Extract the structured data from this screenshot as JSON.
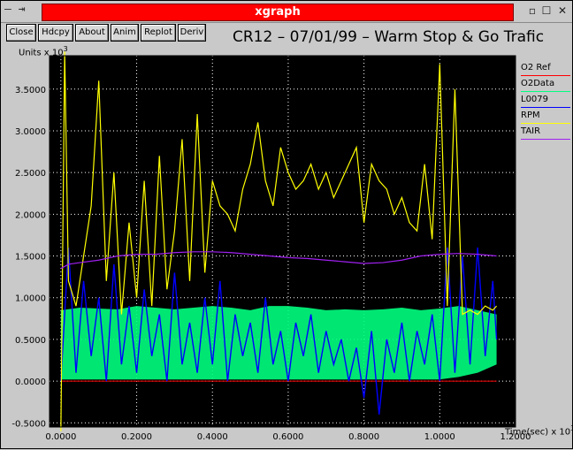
{
  "window": {
    "title": "xgraph",
    "left_controls": "— ⇥",
    "right_controls": [
      "▫",
      "☐",
      "✕"
    ]
  },
  "toolbar": {
    "buttons": [
      "Close",
      "Hdcpy",
      "About",
      "Anim",
      "Replot",
      "Deriv"
    ]
  },
  "chart_data": {
    "type": "line",
    "title": "CR12 – 07/01/99 – Warm Stop & Go Trafic",
    "ylabel": "Units x 10",
    "ylabel_exp": "3",
    "xlabel": "Time(sec) x 10",
    "xlabel_exp": "3",
    "xlim": [
      -0.03,
      1.2
    ],
    "ylim": [
      -0.55,
      3.9
    ],
    "x_ticks": [
      "0.0000",
      "0.2000",
      "0.4000",
      "0.6000",
      "0.8000",
      "1.0000",
      "1.2000"
    ],
    "x_tick_values": [
      0,
      0.2,
      0.4,
      0.6,
      0.8,
      1.0,
      1.2
    ],
    "y_ticks": [
      "-0.5000",
      "0.0000",
      "0.5000",
      "1.0000",
      "1.5000",
      "2.0000",
      "2.5000",
      "3.0000",
      "3.5000"
    ],
    "y_tick_values": [
      -0.5,
      0,
      0.5,
      1.0,
      1.5,
      2.0,
      2.5,
      3.0,
      3.5
    ],
    "grid": true,
    "legend_position": "right",
    "series": [
      {
        "name": "O2 Ref",
        "color": "#ff0000",
        "x": [
          0.0,
          1.15
        ],
        "y": [
          0.0,
          0.0
        ]
      },
      {
        "name": "O2Data",
        "color": "#00ff80",
        "x": [
          0.0,
          0.05,
          0.1,
          0.15,
          0.2,
          0.25,
          0.3,
          0.35,
          0.4,
          0.45,
          0.5,
          0.55,
          0.6,
          0.65,
          0.7,
          0.75,
          0.8,
          0.85,
          0.9,
          0.95,
          1.0,
          1.05,
          1.1,
          1.15
        ],
        "y_low": [
          0.02,
          0.02,
          0.02,
          0.02,
          0.02,
          0.02,
          0.02,
          0.02,
          0.02,
          0.02,
          0.02,
          0.02,
          0.02,
          0.02,
          0.02,
          0.02,
          0.02,
          0.02,
          0.02,
          0.02,
          0.02,
          0.05,
          0.1,
          0.2
        ],
        "y_high": [
          0.85,
          0.88,
          0.87,
          0.86,
          0.9,
          0.88,
          0.86,
          0.88,
          0.9,
          0.88,
          0.85,
          0.9,
          0.9,
          0.88,
          0.85,
          0.86,
          0.85,
          0.86,
          0.88,
          0.85,
          0.87,
          0.9,
          0.85,
          0.8
        ]
      },
      {
        "name": "L0079",
        "color": "#0000ff",
        "x": [
          0.0,
          0.02,
          0.04,
          0.06,
          0.08,
          0.1,
          0.12,
          0.14,
          0.16,
          0.18,
          0.2,
          0.22,
          0.24,
          0.26,
          0.28,
          0.3,
          0.32,
          0.34,
          0.36,
          0.38,
          0.4,
          0.42,
          0.44,
          0.46,
          0.48,
          0.5,
          0.52,
          0.54,
          0.56,
          0.58,
          0.6,
          0.62,
          0.64,
          0.66,
          0.68,
          0.7,
          0.72,
          0.74,
          0.76,
          0.78,
          0.8,
          0.82,
          0.84,
          0.86,
          0.88,
          0.9,
          0.92,
          0.94,
          0.96,
          0.98,
          1.0,
          1.02,
          1.04,
          1.06,
          1.08,
          1.1,
          1.12,
          1.14,
          1.15
        ],
        "y": [
          0.0,
          1.6,
          0.1,
          1.2,
          0.3,
          1.0,
          0.0,
          1.4,
          0.2,
          0.9,
          0.1,
          1.1,
          0.3,
          0.8,
          0.0,
          1.3,
          0.2,
          0.7,
          0.1,
          1.0,
          0.2,
          1.2,
          0.0,
          0.8,
          0.3,
          0.7,
          0.1,
          1.0,
          0.2,
          0.6,
          0.0,
          0.7,
          0.3,
          0.8,
          0.1,
          0.6,
          0.2,
          0.5,
          0.0,
          0.4,
          -0.2,
          0.6,
          -0.4,
          0.5,
          0.1,
          0.7,
          0.0,
          0.6,
          0.2,
          0.8,
          0.0,
          1.6,
          0.1,
          1.5,
          0.2,
          1.6,
          0.3,
          1.2,
          0.5
        ]
      },
      {
        "name": "RPM",
        "color": "#ffff00",
        "x": [
          0.0,
          0.01,
          0.02,
          0.04,
          0.06,
          0.08,
          0.1,
          0.12,
          0.14,
          0.16,
          0.18,
          0.2,
          0.22,
          0.24,
          0.26,
          0.28,
          0.3,
          0.32,
          0.34,
          0.36,
          0.38,
          0.4,
          0.42,
          0.44,
          0.46,
          0.48,
          0.5,
          0.52,
          0.54,
          0.56,
          0.58,
          0.6,
          0.62,
          0.64,
          0.66,
          0.68,
          0.7,
          0.72,
          0.74,
          0.76,
          0.78,
          0.8,
          0.82,
          0.84,
          0.86,
          0.88,
          0.9,
          0.92,
          0.94,
          0.96,
          0.98,
          1.0,
          1.02,
          1.04,
          1.06,
          1.08,
          1.1,
          1.12,
          1.14,
          1.15
        ],
        "y": [
          -0.6,
          3.95,
          1.2,
          0.9,
          1.5,
          2.1,
          3.6,
          1.2,
          2.5,
          0.8,
          1.9,
          1.0,
          2.4,
          0.9,
          2.7,
          1.1,
          1.8,
          2.9,
          1.2,
          3.2,
          1.3,
          2.4,
          2.1,
          2.0,
          1.8,
          2.3,
          2.6,
          3.1,
          2.4,
          2.1,
          2.8,
          2.5,
          2.3,
          2.4,
          2.6,
          2.3,
          2.5,
          2.2,
          2.4,
          2.6,
          2.8,
          1.9,
          2.6,
          2.4,
          2.3,
          2.0,
          2.2,
          1.9,
          1.8,
          2.6,
          1.7,
          3.8,
          0.9,
          3.5,
          0.8,
          0.85,
          0.8,
          0.9,
          0.85,
          0.9
        ]
      },
      {
        "name": "TAIR",
        "color": "#a020f0",
        "x": [
          0.0,
          0.02,
          0.05,
          0.1,
          0.15,
          0.2,
          0.25,
          0.3,
          0.35,
          0.4,
          0.45,
          0.5,
          0.55,
          0.6,
          0.65,
          0.7,
          0.75,
          0.8,
          0.85,
          0.9,
          0.95,
          1.0,
          1.05,
          1.1,
          1.15
        ],
        "y": [
          1.35,
          1.4,
          1.42,
          1.45,
          1.5,
          1.52,
          1.52,
          1.54,
          1.55,
          1.55,
          1.54,
          1.52,
          1.5,
          1.48,
          1.47,
          1.45,
          1.43,
          1.41,
          1.42,
          1.45,
          1.5,
          1.52,
          1.53,
          1.52,
          1.5
        ]
      }
    ]
  }
}
